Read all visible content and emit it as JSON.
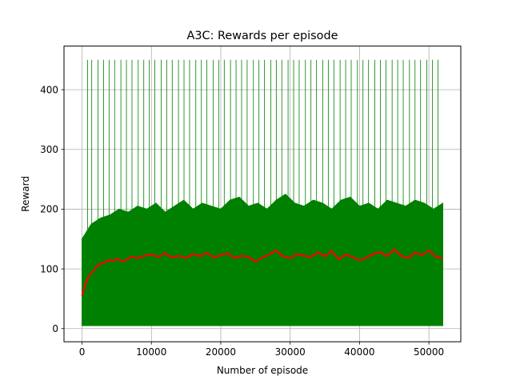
{
  "chart_data": {
    "type": "line",
    "title": "A3C: Rewards per episode",
    "xlabel": "Number of episode",
    "ylabel": "Reward",
    "xlim": [
      -2600,
      54600
    ],
    "ylim": [
      -22,
      473
    ],
    "xticks": [
      0,
      10000,
      20000,
      30000,
      40000,
      50000
    ],
    "yticks": [
      0,
      100,
      200,
      300,
      400
    ],
    "grid": true,
    "legend": "none",
    "x_range": [
      0,
      52000
    ],
    "series": [
      {
        "role": "raw",
        "color": "#008000",
        "band_low": 5,
        "band_high": [
          150,
          175,
          185,
          190,
          200,
          195,
          205,
          200,
          210,
          195,
          205,
          215,
          200,
          210,
          205,
          200,
          215,
          220,
          205,
          210,
          200,
          215,
          225,
          210,
          205,
          215,
          210,
          200,
          215,
          220,
          205,
          210,
          200,
          215,
          210,
          205,
          215,
          210,
          200,
          210
        ],
        "spike_max": 450,
        "spikes": [
          800,
          1400,
          2300,
          3100,
          3900,
          4700,
          5600,
          6400,
          7200,
          8100,
          8900,
          9700,
          10500,
          11400,
          12200,
          13000,
          13900,
          14700,
          15500,
          16400,
          17200,
          18000,
          18900,
          19700,
          20500,
          21400,
          22200,
          23000,
          23800,
          24700,
          25500,
          26300,
          27200,
          28000,
          28800,
          29700,
          30500,
          31300,
          32200,
          33000,
          33800,
          34700,
          35500,
          36300,
          37200,
          38000,
          38800,
          39700,
          40500,
          41300,
          42200,
          43000,
          43800,
          44700,
          45500,
          46300,
          47200,
          48000,
          48800,
          49700,
          50500,
          51300
        ]
      },
      {
        "role": "moving-average",
        "color": "#ff0000",
        "x": [
          0,
          500,
          1000,
          1500,
          2000,
          2500,
          3000,
          3500,
          4000,
          4500,
          5000,
          6000,
          7000,
          8000,
          9000,
          10000,
          11000,
          12000,
          13000,
          14000,
          15000,
          16000,
          17000,
          18000,
          19000,
          20000,
          21000,
          22000,
          23000,
          24000,
          25000,
          26000,
          27000,
          28000,
          29000,
          30000,
          31000,
          32000,
          33000,
          34000,
          35000,
          36000,
          37000,
          38000,
          39000,
          40000,
          41000,
          42000,
          43000,
          44000,
          45000,
          46000,
          47000,
          48000,
          49000,
          50000,
          51000,
          52000
        ],
        "values": [
          55,
          75,
          88,
          95,
          102,
          108,
          110,
          112,
          115,
          113,
          117,
          112,
          120,
          118,
          122,
          124,
          120,
          126,
          119,
          122,
          118,
          125,
          121,
          127,
          119,
          123,
          126,
          118,
          122,
          120,
          112,
          119,
          124,
          131,
          121,
          118,
          125,
          122,
          120,
          128,
          121,
          130,
          116,
          124,
          120,
          114,
          119,
          125,
          128,
          121,
          133,
          122,
          118,
          127,
          123,
          131,
          120,
          118
        ]
      }
    ]
  }
}
